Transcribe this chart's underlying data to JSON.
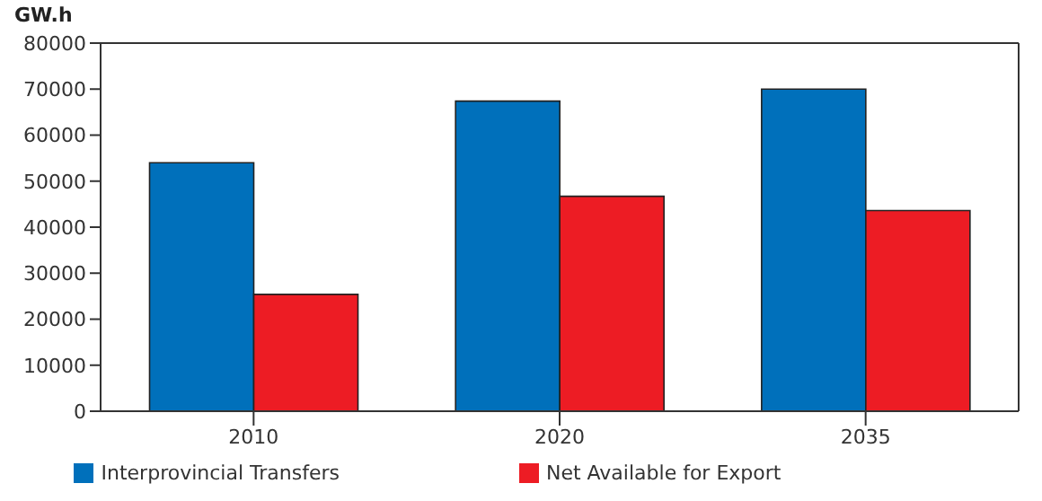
{
  "chart_data": {
    "type": "bar",
    "ylabel": "GW.h",
    "categories": [
      "2010",
      "2020",
      "2035"
    ],
    "series": [
      {
        "name": "Interprovincial Transfers",
        "color": "#0070bb",
        "values": [
          54000,
          67400,
          70000
        ]
      },
      {
        "name": "Net Available for Export",
        "color": "#ed1c24",
        "values": [
          25400,
          46700,
          43600
        ]
      }
    ],
    "ylim": [
      0,
      80000
    ],
    "yticks": [
      0,
      10000,
      20000,
      30000,
      40000,
      50000,
      60000,
      70000,
      80000
    ],
    "grid": false,
    "legend": "bottom"
  }
}
